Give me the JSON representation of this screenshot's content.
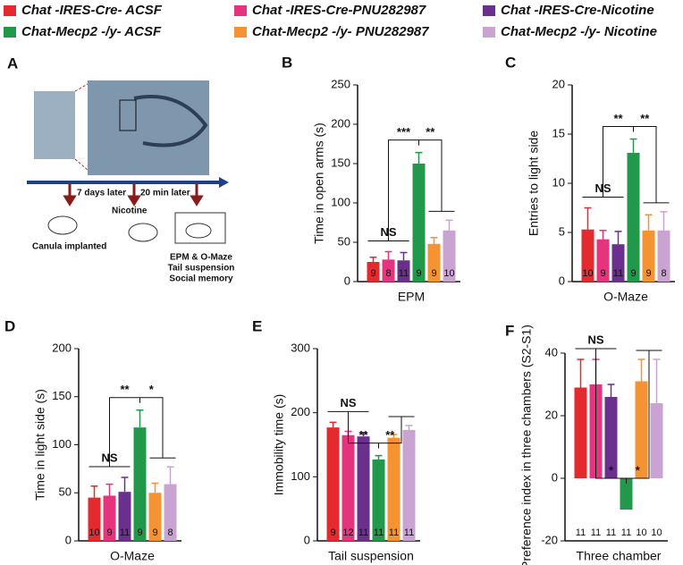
{
  "legend": [
    {
      "name": "Chat -IRES-Cre- ACSF",
      "color": "#e42a2e"
    },
    {
      "name": "Chat -IRES-Cre-PNU282987",
      "color": "#e6337e"
    },
    {
      "name": "Chat -IRES-Cre-Nicotine",
      "color": "#6b2f8e"
    },
    {
      "name": "Chat-Mecp2 -/y- ACSF",
      "color": "#22994a"
    },
    {
      "name": "Chat-Mecp2 -/y- PNU282987",
      "color": "#f59332"
    },
    {
      "name": "Chat-Mecp2 -/y- Nicotine",
      "color": "#c9a3d2"
    }
  ],
  "panel_a": {
    "panel": "A",
    "step1": "7 days later",
    "step2": "20 min later",
    "drug": "Nicotine",
    "surgery": "Canula implanted",
    "tests": [
      "EPM & O-Maze",
      "Tail suspension",
      "Social memory"
    ]
  },
  "chart_data": [
    {
      "type": "bar",
      "panel": "B",
      "ylabel": "Time in open arms (s)",
      "xlabel": "EPM",
      "ylim": [
        0,
        250
      ],
      "yticks": [
        0,
        50,
        100,
        150,
        200,
        250
      ],
      "values": [
        25,
        28,
        27,
        150,
        48,
        65
      ],
      "errors": [
        6,
        10,
        10,
        14,
        8,
        13
      ],
      "n": [
        9,
        8,
        11,
        9,
        9,
        10
      ],
      "annotations": [
        "NS",
        "***",
        "**"
      ]
    },
    {
      "type": "bar",
      "panel": "C",
      "ylabel": "Entries to light side",
      "xlabel": "O-Maze",
      "ylim": [
        0,
        20
      ],
      "yticks": [
        0,
        5,
        10,
        15,
        20
      ],
      "values": [
        5.3,
        4.3,
        3.8,
        13.1,
        5.2,
        5.2
      ],
      "errors": [
        2.2,
        0.9,
        1.3,
        1.4,
        1.6,
        1.9
      ],
      "n": [
        10,
        9,
        11,
        9,
        9,
        8
      ],
      "annotations": [
        "NS",
        "**",
        "**"
      ]
    },
    {
      "type": "bar",
      "panel": "D",
      "ylabel": "Time in light side (s)",
      "xlabel": "O-Maze",
      "ylim": [
        0,
        200
      ],
      "yticks": [
        0,
        50,
        100,
        150,
        200
      ],
      "values": [
        45,
        47,
        51,
        118,
        50,
        59
      ],
      "errors": [
        12,
        12,
        15,
        18,
        10,
        18
      ],
      "n": [
        10,
        9,
        11,
        9,
        9,
        8
      ],
      "annotations": [
        "NS",
        "**",
        "*"
      ]
    },
    {
      "type": "bar",
      "panel": "E",
      "ylabel": "Immobility time (s)",
      "xlabel": "Tail suspension",
      "ylim": [
        0,
        300
      ],
      "yticks": [
        0,
        100,
        200,
        300
      ],
      "values": [
        177,
        165,
        163,
        127,
        161,
        173
      ],
      "errors": [
        8,
        6,
        6,
        6,
        5,
        7
      ],
      "n": [
        9,
        12,
        11,
        11,
        11,
        11
      ],
      "annotations": [
        "NS",
        "**",
        "**"
      ]
    },
    {
      "type": "bar",
      "panel": "F",
      "ylabel": "Preference index in three chambers (S2-S1)",
      "xlabel": "Three chamber",
      "ylim": [
        -20,
        40
      ],
      "yticks": [
        -20,
        0,
        20,
        40
      ],
      "values": [
        29,
        30,
        26,
        -10,
        31,
        24
      ],
      "errors": [
        9,
        8,
        4,
        6,
        7,
        14
      ],
      "n": [
        11,
        11,
        11,
        11,
        10,
        10
      ],
      "annotations": [
        "NS",
        "*",
        "*"
      ]
    }
  ]
}
